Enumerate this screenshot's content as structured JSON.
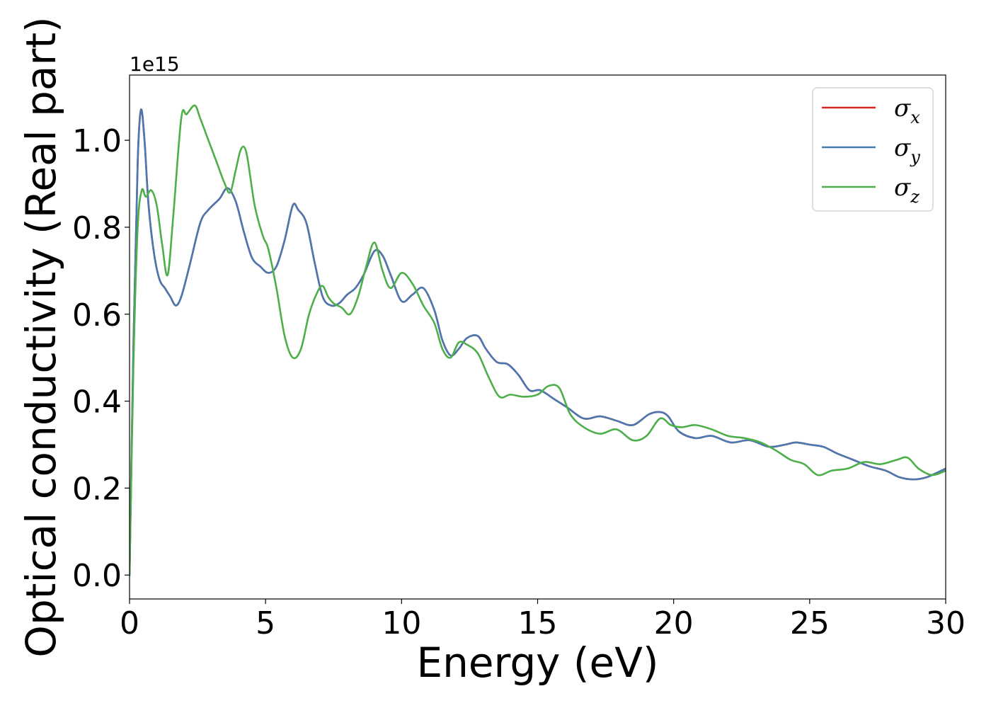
{
  "chart_data": {
    "type": "line",
    "xlabel": "Energy (eV)",
    "ylabel": "Optical conductivity (Real part)",
    "y_offset_text": "1e15",
    "xlim": [
      0,
      30
    ],
    "ylim": [
      -0.055,
      1.15
    ],
    "xticks": [
      0,
      5,
      10,
      15,
      20,
      25,
      30
    ],
    "xtick_labels": [
      "0",
      "5",
      "10",
      "15",
      "20",
      "25",
      "30"
    ],
    "yticks": [
      0.0,
      0.2,
      0.4,
      0.6,
      0.8,
      1.0
    ],
    "ytick_labels": [
      "0.0",
      "0.2",
      "0.4",
      "0.6",
      "0.8",
      "1.0"
    ],
    "grid": false,
    "legend_position": "top-right",
    "series": [
      {
        "name": "σ",
        "subscript": "x",
        "color": "#d62728",
        "x": [
          0,
          0.15,
          0.3,
          0.42,
          0.55,
          0.7,
          0.9,
          1.1,
          1.3,
          1.5,
          1.7,
          1.9,
          2.2,
          2.6,
          2.9,
          3.3,
          3.6,
          3.9,
          4.2,
          4.5,
          4.8,
          5.1,
          5.4,
          5.7,
          6.0,
          6.2,
          6.5,
          6.8,
          7.1,
          7.4,
          7.7,
          8.0,
          8.3,
          8.6,
          9.0,
          9.3,
          9.6,
          10.0,
          10.4,
          10.8,
          11.2,
          11.5,
          11.8,
          12.1,
          12.4,
          12.8,
          13.1,
          13.5,
          13.9,
          14.3,
          14.7,
          15.1,
          15.6,
          16.1,
          16.7,
          17.3,
          17.9,
          18.5,
          19.1,
          19.5,
          19.8,
          20.2,
          20.8,
          21.4,
          22.1,
          22.8,
          23.5,
          24.1,
          24.5,
          25.0,
          25.5,
          26.0,
          26.6,
          27.2,
          27.8,
          28.3,
          28.8,
          29.3,
          30.0
        ],
        "values": [
          0.0,
          0.55,
          0.95,
          1.07,
          1.0,
          0.85,
          0.74,
          0.68,
          0.66,
          0.64,
          0.62,
          0.64,
          0.71,
          0.81,
          0.84,
          0.865,
          0.89,
          0.86,
          0.79,
          0.73,
          0.71,
          0.695,
          0.71,
          0.77,
          0.85,
          0.84,
          0.81,
          0.72,
          0.64,
          0.62,
          0.625,
          0.645,
          0.66,
          0.69,
          0.745,
          0.735,
          0.69,
          0.63,
          0.645,
          0.66,
          0.61,
          0.54,
          0.505,
          0.52,
          0.545,
          0.55,
          0.52,
          0.49,
          0.485,
          0.46,
          0.425,
          0.425,
          0.405,
          0.385,
          0.36,
          0.365,
          0.355,
          0.345,
          0.37,
          0.375,
          0.365,
          0.33,
          0.315,
          0.32,
          0.305,
          0.31,
          0.295,
          0.3,
          0.305,
          0.3,
          0.295,
          0.28,
          0.265,
          0.25,
          0.24,
          0.225,
          0.22,
          0.225,
          0.245
        ]
      },
      {
        "name": "σ",
        "subscript": "y",
        "color": "#4a78b0",
        "x": [
          0,
          0.15,
          0.3,
          0.42,
          0.55,
          0.7,
          0.9,
          1.1,
          1.3,
          1.5,
          1.7,
          1.9,
          2.2,
          2.6,
          2.9,
          3.3,
          3.6,
          3.9,
          4.2,
          4.5,
          4.8,
          5.1,
          5.4,
          5.7,
          6.0,
          6.2,
          6.5,
          6.8,
          7.1,
          7.4,
          7.7,
          8.0,
          8.3,
          8.6,
          9.0,
          9.3,
          9.6,
          10.0,
          10.4,
          10.8,
          11.2,
          11.5,
          11.8,
          12.1,
          12.4,
          12.8,
          13.1,
          13.5,
          13.9,
          14.3,
          14.7,
          15.1,
          15.6,
          16.1,
          16.7,
          17.3,
          17.9,
          18.5,
          19.1,
          19.5,
          19.8,
          20.2,
          20.8,
          21.4,
          22.1,
          22.8,
          23.5,
          24.1,
          24.5,
          25.0,
          25.5,
          26.0,
          26.6,
          27.2,
          27.8,
          28.3,
          28.8,
          29.3,
          30.0
        ],
        "values": [
          0.0,
          0.55,
          0.95,
          1.07,
          1.0,
          0.85,
          0.74,
          0.68,
          0.66,
          0.64,
          0.62,
          0.64,
          0.71,
          0.81,
          0.84,
          0.865,
          0.89,
          0.86,
          0.79,
          0.73,
          0.71,
          0.695,
          0.71,
          0.77,
          0.85,
          0.84,
          0.81,
          0.72,
          0.64,
          0.62,
          0.625,
          0.645,
          0.66,
          0.69,
          0.745,
          0.735,
          0.69,
          0.63,
          0.645,
          0.66,
          0.61,
          0.54,
          0.505,
          0.52,
          0.545,
          0.55,
          0.52,
          0.49,
          0.485,
          0.46,
          0.425,
          0.425,
          0.405,
          0.385,
          0.36,
          0.365,
          0.355,
          0.345,
          0.37,
          0.375,
          0.365,
          0.33,
          0.315,
          0.32,
          0.305,
          0.31,
          0.295,
          0.3,
          0.305,
          0.3,
          0.295,
          0.28,
          0.265,
          0.25,
          0.24,
          0.225,
          0.22,
          0.225,
          0.245
        ]
      },
      {
        "name": "σ",
        "subscript": "z",
        "color": "#4daf4a",
        "x": [
          0,
          0.15,
          0.3,
          0.45,
          0.6,
          0.8,
          1.0,
          1.2,
          1.4,
          1.6,
          1.9,
          2.1,
          2.4,
          2.6,
          2.9,
          3.2,
          3.5,
          3.7,
          3.9,
          4.1,
          4.3,
          4.6,
          4.9,
          5.1,
          5.4,
          5.7,
          6.0,
          6.3,
          6.6,
          6.9,
          7.1,
          7.3,
          7.5,
          7.8,
          8.1,
          8.4,
          8.7,
          9.0,
          9.3,
          9.6,
          10.0,
          10.4,
          10.8,
          11.2,
          11.5,
          11.8,
          12.1,
          12.4,
          12.8,
          13.2,
          13.6,
          14.0,
          14.5,
          15.0,
          15.4,
          15.8,
          16.2,
          16.7,
          17.3,
          17.9,
          18.5,
          19.0,
          19.5,
          19.9,
          20.3,
          20.8,
          21.4,
          22.0,
          22.6,
          23.2,
          23.8,
          24.3,
          24.8,
          25.3,
          25.8,
          26.4,
          27.0,
          27.6,
          28.2,
          28.6,
          29.0,
          29.5,
          30.0
        ],
        "values": [
          0.0,
          0.5,
          0.8,
          0.885,
          0.87,
          0.885,
          0.85,
          0.76,
          0.69,
          0.82,
          1.05,
          1.06,
          1.08,
          1.05,
          1.0,
          0.95,
          0.9,
          0.88,
          0.93,
          0.98,
          0.97,
          0.85,
          0.78,
          0.75,
          0.66,
          0.55,
          0.5,
          0.52,
          0.6,
          0.65,
          0.665,
          0.64,
          0.625,
          0.615,
          0.6,
          0.64,
          0.71,
          0.765,
          0.7,
          0.66,
          0.695,
          0.67,
          0.62,
          0.58,
          0.52,
          0.5,
          0.535,
          0.53,
          0.51,
          0.455,
          0.41,
          0.415,
          0.41,
          0.415,
          0.435,
          0.43,
          0.37,
          0.34,
          0.325,
          0.335,
          0.31,
          0.32,
          0.36,
          0.345,
          0.34,
          0.345,
          0.335,
          0.32,
          0.315,
          0.305,
          0.285,
          0.265,
          0.255,
          0.23,
          0.24,
          0.245,
          0.26,
          0.255,
          0.265,
          0.27,
          0.245,
          0.23,
          0.24
        ]
      }
    ]
  }
}
